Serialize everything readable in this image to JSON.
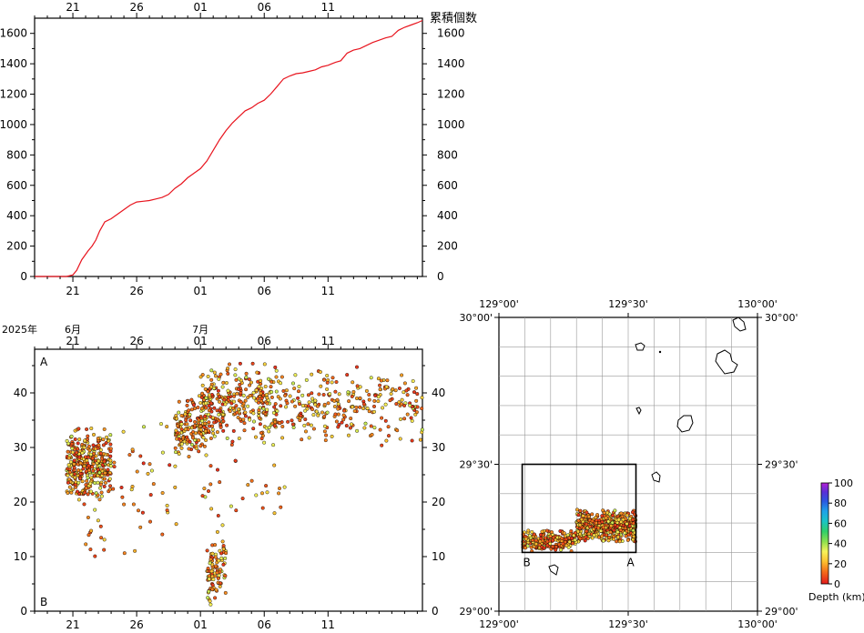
{
  "chart_data": [
    {
      "type": "line",
      "id": "cumulative",
      "ylabel": "累積個数",
      "ylim": [
        0,
        1700
      ],
      "yticks": [
        0,
        200,
        400,
        600,
        800,
        1000,
        1200,
        1400,
        1600
      ],
      "xlim": [
        18,
        48.4
      ],
      "x_tick_values": [
        21,
        26,
        31,
        36,
        41
      ],
      "x_tick_labels": [
        "21",
        "26",
        "01",
        "06",
        "11"
      ],
      "series": [
        {
          "color": "#e8141e",
          "x": [
            18,
            20.5,
            21.0,
            21.3,
            21.7,
            22.2,
            22.5,
            22.8,
            23.1,
            23.5,
            24.0,
            24.5,
            25.0,
            25.5,
            26.0,
            26.5,
            27.0,
            27.5,
            28.0,
            28.5,
            29.0,
            29.5,
            30.0,
            30.5,
            31.0,
            31.5,
            32.0,
            32.5,
            33.0,
            33.5,
            34.0,
            34.5,
            35.0,
            35.5,
            36.0,
            36.5,
            37.0,
            37.5,
            38.0,
            38.5,
            39.0,
            39.5,
            40.0,
            40.5,
            41.0,
            41.3,
            41.6,
            42.0,
            42.5,
            43.0,
            43.5,
            44.0,
            44.5,
            45.0,
            45.5,
            46.0,
            46.5,
            47.0,
            47.5,
            48.0,
            48.4
          ],
          "y": [
            0,
            0,
            10,
            40,
            110,
            170,
            200,
            240,
            300,
            360,
            380,
            410,
            440,
            470,
            490,
            495,
            500,
            510,
            520,
            540,
            580,
            610,
            650,
            680,
            710,
            760,
            830,
            900,
            960,
            1010,
            1050,
            1090,
            1110,
            1140,
            1160,
            1200,
            1250,
            1300,
            1320,
            1335,
            1340,
            1350,
            1360,
            1380,
            1390,
            1400,
            1410,
            1420,
            1470,
            1490,
            1500,
            1520,
            1540,
            1555,
            1570,
            1580,
            1620,
            1640,
            1655,
            1670,
            1685
          ]
        }
      ]
    },
    {
      "type": "scatter",
      "id": "depth-time",
      "ylim": [
        0,
        48
      ],
      "yticks": [
        0,
        10,
        20,
        30,
        40
      ],
      "xlim": [
        18,
        48.4
      ],
      "x_tick_values": [
        21,
        26,
        31,
        36,
        41
      ],
      "x_tick_labels": [
        "21",
        "26",
        "01",
        "06",
        "11"
      ],
      "year_label": "2025年",
      "month_labels": [
        {
          "x": 21,
          "text": "6月"
        },
        {
          "x": 31,
          "text": "7月"
        }
      ],
      "panel_label_top": "A",
      "panel_label_bottom": "B",
      "clusters": [
        {
          "x": [
            20.5,
            24.0
          ],
          "y": [
            20,
            34
          ],
          "n": 340,
          "seed": 11
        },
        {
          "x": [
            21.5,
            23.5
          ],
          "y": [
            8,
            20
          ],
          "n": 14,
          "seed": 12
        },
        {
          "x": [
            24.0,
            29.5
          ],
          "y": [
            8,
            36
          ],
          "n": 40,
          "seed": 13
        },
        {
          "x": [
            29.0,
            31.5
          ],
          "y": [
            28,
            40
          ],
          "n": 160,
          "seed": 14
        },
        {
          "x": [
            31.5,
            33.0
          ],
          "y": [
            1,
            13
          ],
          "n": 90,
          "seed": 15
        },
        {
          "x": [
            31.0,
            37.0
          ],
          "y": [
            30,
            46
          ],
          "n": 300,
          "seed": 16
        },
        {
          "x": [
            31.0,
            38.0
          ],
          "y": [
            14,
            30
          ],
          "n": 30,
          "seed": 17
        },
        {
          "x": [
            37.0,
            48.4
          ],
          "y": [
            30,
            45
          ],
          "n": 260,
          "seed": 18
        }
      ]
    },
    {
      "type": "scatter",
      "id": "epicenter-map",
      "xlim": [
        129.0,
        130.0
      ],
      "ylim": [
        29.0,
        30.0
      ],
      "x_tick_values": [
        129.0,
        129.5,
        130.0
      ],
      "x_tick_labels": [
        "129°00'",
        "129°30'",
        "130°00'"
      ],
      "y_tick_values": [
        29.0,
        29.5,
        30.0
      ],
      "y_tick_labels": [
        "29°00'",
        "29°30'",
        "30°00'"
      ],
      "box": {
        "lon": [
          129.09,
          129.53
        ],
        "lat": [
          29.2,
          29.5
        ]
      },
      "box_label_a": "A",
      "box_label_b": "B",
      "clusters": [
        {
          "lon": [
            129.3,
            129.53
          ],
          "lat": [
            29.23,
            29.35
          ],
          "n": 520,
          "seed": 21
        },
        {
          "lon": [
            129.09,
            129.3
          ],
          "lat": [
            29.2,
            29.28
          ],
          "n": 220,
          "seed": 22
        }
      ],
      "colorbar": {
        "label": "Depth (km)",
        "ticks": [
          0,
          20,
          40,
          60,
          80,
          100
        ]
      }
    }
  ]
}
